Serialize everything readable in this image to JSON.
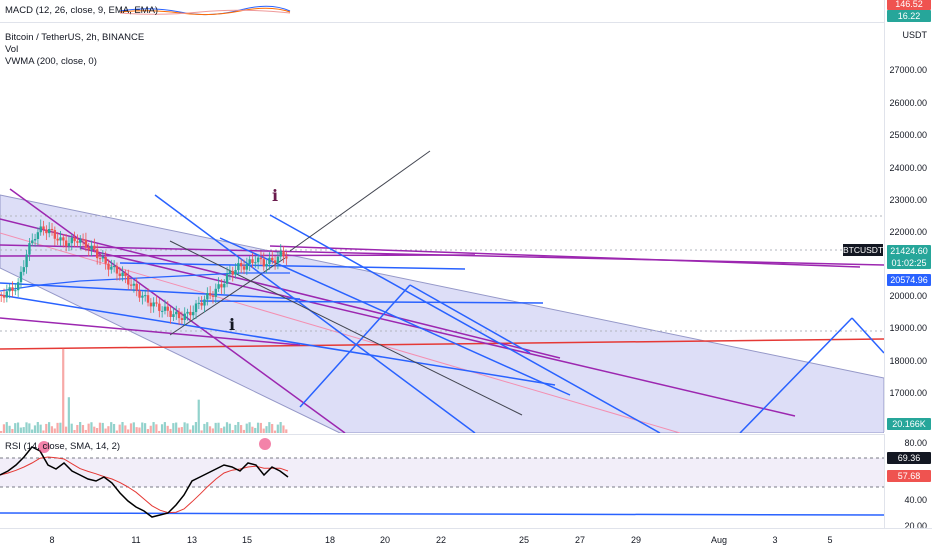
{
  "macd": {
    "legend": "MACD (12, 26, close, 9, EMA, EMA)",
    "tag_top": "146.52",
    "tag_bottom": "16.22"
  },
  "main": {
    "title": "Bitcoin / TetherUS, 2h, BINANCE",
    "vol_label": "Vol",
    "vwma_label": "VWMA (200, close, 0)",
    "currency": "USDT",
    "price_ticks": [
      "27000.00",
      "26000.00",
      "25000.00",
      "24000.00",
      "23000.00",
      "22000.00",
      "20000.00",
      "19000.00",
      "18000.00",
      "17000.00"
    ],
    "symbol_tag": "BTCUSDT",
    "last_price": "21424.60",
    "countdown": "01:02:25",
    "vwma_value": "20574.96",
    "volume_value": "20.166K",
    "marker_glyph": "i",
    "colors": {
      "up": "#26a69a",
      "down": "#ef5350",
      "blue_line": "#2962ff",
      "purple_line": "#9c27b0",
      "channel": "rgba(120,123,224,0.28)"
    }
  },
  "rsi": {
    "legend": "RSI (14, close, SMA, 14, 2)",
    "ticks": [
      "80.00",
      "40.00",
      "20.00"
    ],
    "value": "69.36",
    "ma_value": "57.68"
  },
  "time_axis": {
    "labels": [
      "8",
      "11",
      "13",
      "15",
      "18",
      "20",
      "22",
      "25",
      "27",
      "29",
      "Aug",
      "3",
      "5"
    ]
  },
  "chart_data": {
    "type": "candlestick",
    "symbol": "BTCUSDT",
    "interval": "2h",
    "last_close": 21424.6,
    "vwma_200": 20574.96,
    "rsi_14": 69.36,
    "rsi_sma_14": 57.68
  }
}
